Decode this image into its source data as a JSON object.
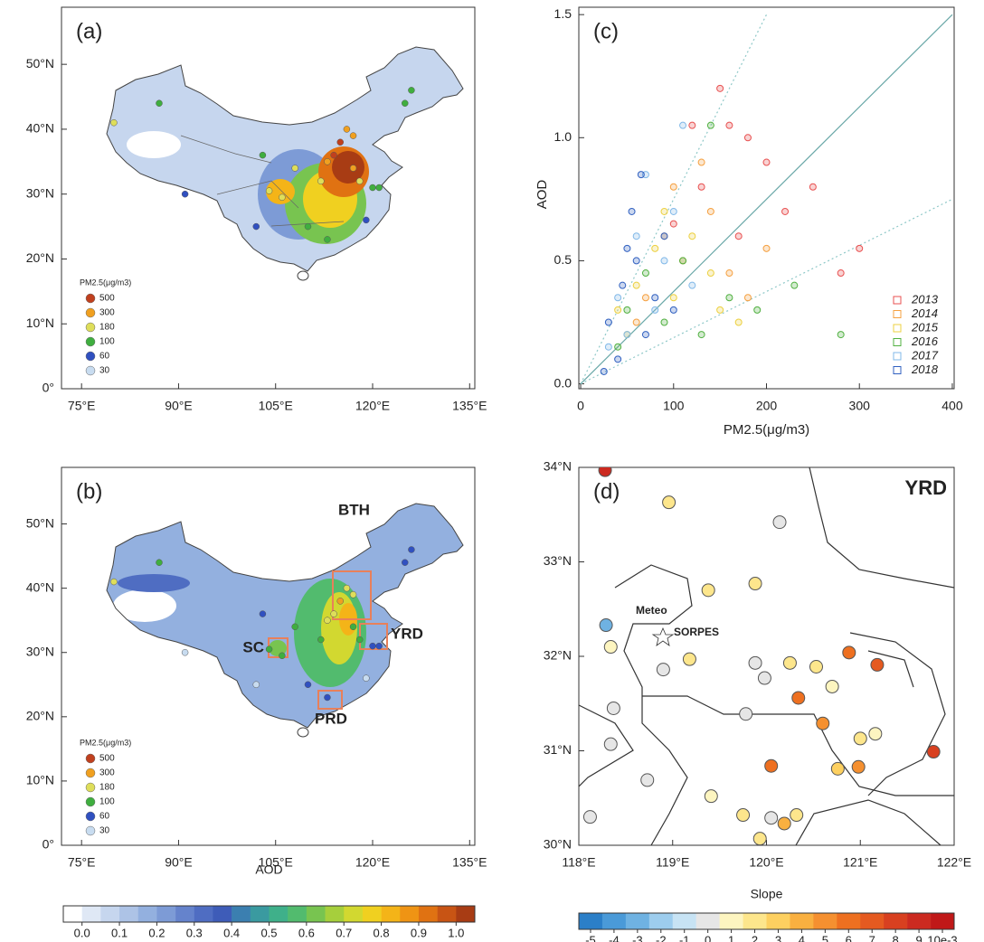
{
  "chart_data": [
    {
      "type": "map",
      "panel_label": "(a)",
      "xlim": [
        71.9,
        135.8
      ],
      "ylim": [
        0,
        58.8
      ],
      "xticks": [
        {
          "value": 75,
          "label": "75°E"
        },
        {
          "value": 90,
          "label": "90°E"
        },
        {
          "value": 105,
          "label": "105°E"
        },
        {
          "value": 120,
          "label": "120°E"
        },
        {
          "value": 135,
          "label": "135°E"
        }
      ],
      "yticks": [
        {
          "value": 0,
          "label": "0°"
        },
        {
          "value": 10,
          "label": "10°N"
        },
        {
          "value": 20,
          "label": "20°N"
        },
        {
          "value": 30,
          "label": "30°N"
        },
        {
          "value": 40,
          "label": "40°N"
        },
        {
          "value": 50,
          "label": "50°N"
        }
      ],
      "legend": {
        "title": "PM2.5(μg/m3)",
        "values": [
          500,
          300,
          180,
          100,
          60,
          30
        ],
        "colors": [
          "#c0401e",
          "#f0a020",
          "#dede5a",
          "#3fae3f",
          "#3050c0",
          "#c8dcf0"
        ]
      },
      "lon": [
        116,
        117,
        115,
        114,
        113,
        117,
        112,
        118,
        120,
        121,
        104,
        106,
        113,
        110,
        87,
        80,
        103,
        108,
        125,
        126,
        119,
        102,
        91
      ],
      "lat": [
        40,
        39,
        38,
        36,
        35,
        34,
        32,
        32,
        31,
        31,
        30.5,
        29.5,
        23,
        25,
        44,
        41,
        36,
        34,
        44,
        46,
        26,
        25,
        30
      ],
      "values": [
        300,
        300,
        500,
        500,
        300,
        300,
        180,
        180,
        100,
        100,
        180,
        180,
        100,
        100,
        100,
        180,
        100,
        180,
        100,
        100,
        60,
        60,
        60
      ]
    },
    {
      "type": "map",
      "panel_label": "(b)",
      "xlim": [
        71.9,
        135.8
      ],
      "ylim": [
        0,
        58.8
      ],
      "xticks": [
        {
          "value": 75,
          "label": "75°E"
        },
        {
          "value": 90,
          "label": "90°E"
        },
        {
          "value": 105,
          "label": "105°E"
        },
        {
          "value": 120,
          "label": "120°E"
        },
        {
          "value": 135,
          "label": "135°E"
        }
      ],
      "yticks": [
        {
          "value": 0,
          "label": "0°"
        },
        {
          "value": 10,
          "label": "10°N"
        },
        {
          "value": 20,
          "label": "20°N"
        },
        {
          "value": 30,
          "label": "30°N"
        },
        {
          "value": 40,
          "label": "40°N"
        },
        {
          "value": 50,
          "label": "50°N"
        }
      ],
      "regions": [
        "BTH",
        "YRD",
        "SC",
        "PRD"
      ],
      "legend": {
        "title": "PM2.5(μg/m3)",
        "values": [
          500,
          300,
          180,
          100,
          60,
          30
        ],
        "colors": [
          "#c0401e",
          "#f0a020",
          "#dede5a",
          "#3fae3f",
          "#3050c0",
          "#c8dcf0"
        ]
      },
      "lon": [
        116,
        117,
        115,
        114,
        113,
        117,
        112,
        118,
        120,
        121,
        104,
        106,
        113,
        110,
        87,
        80,
        103,
        108,
        125,
        126,
        119,
        102,
        91
      ],
      "lat": [
        40,
        39,
        38,
        36,
        35,
        34,
        32,
        32,
        31,
        31,
        30.5,
        29.5,
        23,
        25,
        44,
        41,
        36,
        34,
        44,
        46,
        26,
        25,
        30
      ],
      "values": [
        180,
        180,
        300,
        180,
        180,
        100,
        100,
        100,
        60,
        60,
        100,
        100,
        60,
        60,
        100,
        180,
        60,
        100,
        60,
        60,
        30,
        30,
        30
      ],
      "colorbar": {
        "label": "AOD",
        "lim": [
          -0.05,
          1.05
        ],
        "colors": [
          "#ffffff",
          "#dfe8f5",
          "#c6d6ee",
          "#adc3e6",
          "#93b0df",
          "#7d9bd6",
          "#6583cc",
          "#4f6dc2",
          "#3e5cb8",
          "#3b7fb0",
          "#3a9aa0",
          "#3fb08a",
          "#52bb6e",
          "#78c450",
          "#a6cf3c",
          "#d2d830",
          "#f0d020",
          "#f4b418",
          "#ef9414",
          "#e07212",
          "#c85414",
          "#a83c14"
        ],
        "ticks": [
          {
            "value": 0,
            "label": "0.0"
          },
          {
            "value": 0.1,
            "label": "0.1"
          },
          {
            "value": 0.2,
            "label": "0.2"
          },
          {
            "value": 0.3,
            "label": "0.3"
          },
          {
            "value": 0.4,
            "label": "0.4"
          },
          {
            "value": 0.5,
            "label": "0.5"
          },
          {
            "value": 0.6,
            "label": "0.6"
          },
          {
            "value": 0.7,
            "label": "0.7"
          },
          {
            "value": 0.8,
            "label": "0.8"
          },
          {
            "value": 0.9,
            "label": "0.9"
          },
          {
            "value": 1,
            "label": "1.0"
          }
        ]
      }
    },
    {
      "type": "scatter",
      "panel_label": "(c)",
      "x_label": "PM2.5(μg/m3)",
      "y_label": "AOD",
      "xlim": [
        -2,
        402
      ],
      "ylim": [
        -0.02,
        1.53
      ],
      "xticks": [
        0,
        100,
        200,
        300,
        400
      ],
      "yticks": [
        {
          "value": 0,
          "label": "0.0"
        },
        {
          "value": 0.5,
          "label": "0.5"
        },
        {
          "value": 1,
          "label": "1.0"
        },
        {
          "value": 1.5,
          "label": "1.5"
        }
      ],
      "lines": [
        {
          "style": "solid",
          "color": "#6aa8a8",
          "x": [
            0,
            400
          ],
          "values": [
            0,
            1.5
          ]
        },
        {
          "style": "dotted",
          "color": "#8ec8c8",
          "x": [
            0,
            200
          ],
          "values": [
            0,
            1.5
          ]
        },
        {
          "style": "dotted",
          "color": "#8ec8c8",
          "x": [
            0,
            400
          ],
          "values": [
            0,
            0.75
          ]
        }
      ],
      "series": [
        {
          "name": "2013",
          "color": "#e85050",
          "x": [
            120,
            150,
            180,
            200,
            250,
            300,
            130,
            170,
            220,
            100,
            160,
            280
          ],
          "values": [
            1.05,
            1.2,
            1.0,
            0.9,
            0.8,
            0.55,
            0.8,
            0.6,
            0.7,
            0.65,
            1.05,
            0.45
          ]
        },
        {
          "name": "2014",
          "color": "#f5a040",
          "x": [
            90,
            110,
            140,
            160,
            200,
            70,
            130,
            180,
            100,
            60
          ],
          "values": [
            0.6,
            0.5,
            0.7,
            0.45,
            0.55,
            0.35,
            0.9,
            0.35,
            0.8,
            0.25
          ]
        },
        {
          "name": "2015",
          "color": "#ecd040",
          "x": [
            60,
            80,
            100,
            120,
            150,
            50,
            90,
            140,
            40,
            170
          ],
          "values": [
            0.4,
            0.55,
            0.35,
            0.6,
            0.3,
            0.2,
            0.7,
            0.45,
            0.3,
            0.25
          ]
        },
        {
          "name": "2016",
          "color": "#50b040",
          "x": [
            50,
            70,
            90,
            110,
            130,
            160,
            190,
            140,
            230,
            40,
            280
          ],
          "values": [
            0.3,
            0.45,
            0.25,
            0.5,
            0.2,
            0.35,
            0.3,
            1.05,
            0.4,
            0.15,
            0.2
          ]
        },
        {
          "name": "2017",
          "color": "#80b8e8",
          "x": [
            40,
            60,
            80,
            100,
            50,
            70,
            120,
            30,
            90,
            110
          ],
          "values": [
            0.35,
            0.6,
            0.3,
            0.7,
            0.2,
            0.85,
            0.4,
            0.15,
            0.5,
            1.05
          ]
        },
        {
          "name": "2018",
          "color": "#3060c0",
          "x": [
            30,
            45,
            60,
            70,
            55,
            80,
            40,
            90,
            65,
            25,
            100,
            50
          ],
          "values": [
            0.25,
            0.4,
            0.5,
            0.2,
            0.7,
            0.35,
            0.1,
            0.6,
            0.85,
            0.05,
            0.3,
            0.55
          ]
        }
      ]
    },
    {
      "type": "map",
      "panel_label": "(d)",
      "title": "YRD",
      "annotations": [
        "Meteo",
        "SORPES"
      ],
      "xlim": [
        118,
        122
      ],
      "ylim": [
        30,
        34
      ],
      "xticks": [
        {
          "value": 118,
          "label": "118°E"
        },
        {
          "value": 119,
          "label": "119°E"
        },
        {
          "value": 120,
          "label": "120°E"
        },
        {
          "value": 121,
          "label": "121°E"
        },
        {
          "value": 122,
          "label": "122°E"
        }
      ],
      "yticks": [
        {
          "value": 30,
          "label": "30°N"
        },
        {
          "value": 31,
          "label": "31°N"
        },
        {
          "value": 32,
          "label": "32°N"
        },
        {
          "value": 33,
          "label": "33°N"
        },
        {
          "value": 34,
          "label": "34°N"
        }
      ],
      "lon": [
        118.28,
        118.96,
        120.14,
        118.29,
        119.38,
        119.88,
        118.34,
        118.9,
        119.18,
        118.37,
        118.34,
        118.73,
        119.88,
        119.98,
        120.25,
        120.53,
        120.88,
        121.18,
        120.34,
        120.7,
        119.78,
        120.6,
        121.0,
        121.16,
        121.78,
        120.98,
        120.76,
        120.05,
        119.41,
        118.12,
        119.75,
        120.05,
        120.19,
        120.32,
        119.93
      ],
      "lat": [
        33.97,
        33.63,
        33.42,
        32.33,
        32.7,
        32.77,
        32.1,
        31.86,
        31.97,
        31.45,
        31.07,
        30.69,
        31.93,
        31.77,
        31.93,
        31.89,
        32.04,
        31.91,
        31.56,
        31.68,
        31.39,
        31.29,
        31.13,
        31.18,
        30.99,
        30.83,
        30.81,
        30.84,
        30.52,
        30.3,
        30.32,
        30.29,
        30.23,
        30.32,
        30.07
      ],
      "values": [
        9,
        2,
        0,
        -3,
        2,
        2,
        1,
        0,
        2,
        0,
        0,
        0,
        0,
        0,
        2,
        2,
        6,
        7,
        6,
        1,
        0,
        5,
        2,
        1,
        8,
        5,
        3,
        6,
        1,
        0,
        2,
        0,
        4,
        2,
        2
      ],
      "colorbar": {
        "label": "Slope",
        "lim": [
          -5.5,
          10.5
        ],
        "colors": [
          "#2b7fc8",
          "#4a9ad8",
          "#6fb2e2",
          "#9dcdee",
          "#c7e3f4",
          "#e6e6e6",
          "#fdf5c0",
          "#fde68c",
          "#fdd060",
          "#f9b040",
          "#f59030",
          "#ee7020",
          "#e55a20",
          "#d84020",
          "#cc2a20",
          "#c01818"
        ],
        "ticks": [
          -5,
          -4,
          -3,
          -2,
          -1,
          0,
          1,
          2,
          3,
          4,
          5,
          6,
          7,
          8,
          9,
          {
            "value": 10,
            "label": "10e-3"
          }
        ]
      }
    }
  ]
}
